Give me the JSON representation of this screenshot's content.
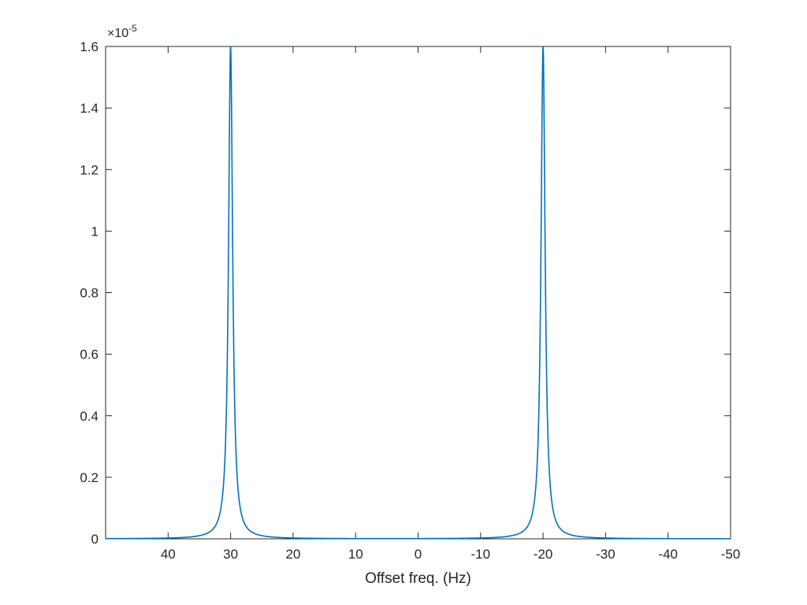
{
  "chart_data": {
    "type": "line",
    "title": "",
    "xlabel": "Offset freq. (Hz)",
    "ylabel": "",
    "x_reversed": true,
    "xlim": [
      50,
      -50
    ],
    "ylim": [
      0,
      1.6e-05
    ],
    "x_ticks": [
      40,
      30,
      20,
      10,
      0,
      -10,
      -20,
      -30,
      -40,
      -50
    ],
    "x_tick_labels": [
      "40",
      "30",
      "20",
      "10",
      "0",
      "-10",
      "-20",
      "-30",
      "-40",
      "-50"
    ],
    "y_ticks": [
      0,
      2e-06,
      4e-06,
      6e-06,
      8e-06,
      1e-05,
      1.2e-05,
      1.4e-05,
      1.6e-05
    ],
    "y_tick_labels": [
      "0",
      "0.2",
      "0.4",
      "0.6",
      "0.8",
      "1",
      "1.2",
      "1.4",
      "1.6"
    ],
    "y_exponent_label": "×10",
    "y_exponent_power": "-5",
    "grid": false,
    "line_color": "#0072BD",
    "series": [
      {
        "peaks": [
          {
            "center_hz": 30,
            "height": 1.6e-05,
            "hwhm_hz": 0.4
          },
          {
            "center_hz": -20,
            "height": 1.6e-05,
            "hwhm_hz": 0.4
          }
        ],
        "shape": "lorentzian"
      }
    ]
  }
}
